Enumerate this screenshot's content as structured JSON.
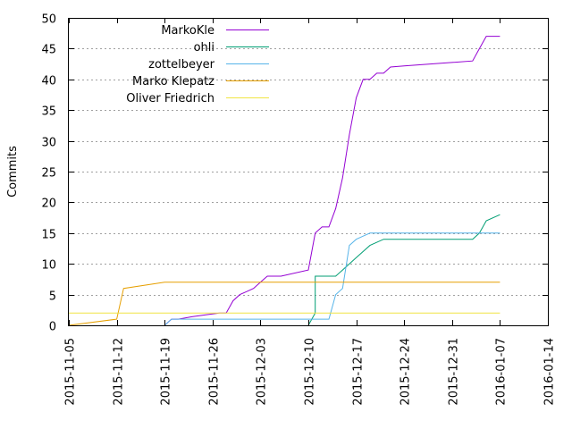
{
  "chart_data": {
    "type": "line",
    "title": "",
    "xlabel": "",
    "ylabel": "Commits",
    "xlim": [
      "2015-11-05",
      "2016-01-14"
    ],
    "ylim": [
      0,
      50
    ],
    "x_ticks": [
      "2015-11-05",
      "2015-11-12",
      "2015-11-19",
      "2015-11-26",
      "2015-12-03",
      "2015-12-10",
      "2015-12-17",
      "2015-12-24",
      "2015-12-31",
      "2016-01-07",
      "2016-01-14"
    ],
    "y_ticks": [
      0,
      5,
      10,
      15,
      20,
      25,
      30,
      35,
      40,
      45,
      50
    ],
    "grid": true,
    "legend_position": "top-left",
    "series": [
      {
        "name": "MarkoKle",
        "color": "#9400d3",
        "points": [
          [
            "2015-11-19",
            0
          ],
          [
            "2015-11-20",
            1
          ],
          [
            "2015-11-21",
            1
          ],
          [
            "2015-11-23",
            1.4
          ],
          [
            "2015-11-25",
            1.7
          ],
          [
            "2015-11-27",
            2
          ],
          [
            "2015-11-28",
            2
          ],
          [
            "2015-11-29",
            4
          ],
          [
            "2015-11-30",
            5
          ],
          [
            "2015-12-01",
            5.5
          ],
          [
            "2015-12-02",
            6
          ],
          [
            "2015-12-03",
            7
          ],
          [
            "2015-12-04",
            8
          ],
          [
            "2015-12-06",
            8
          ],
          [
            "2015-12-10",
            9
          ],
          [
            "2015-12-11",
            15
          ],
          [
            "2015-12-12",
            16
          ],
          [
            "2015-12-13",
            16
          ],
          [
            "2015-12-14",
            19
          ],
          [
            "2015-12-15",
            24
          ],
          [
            "2015-12-16",
            31
          ],
          [
            "2015-12-17",
            37
          ],
          [
            "2015-12-18",
            40
          ],
          [
            "2015-12-19",
            40
          ],
          [
            "2015-12-20",
            41
          ],
          [
            "2015-12-21",
            41
          ],
          [
            "2015-12-22",
            42
          ],
          [
            "2015-12-24",
            42.2
          ],
          [
            "2016-01-03",
            43
          ],
          [
            "2016-01-04",
            45
          ],
          [
            "2016-01-05",
            47
          ],
          [
            "2016-01-07",
            47
          ]
        ]
      },
      {
        "name": "ohli",
        "color": "#009e73",
        "points": [
          [
            "2015-12-10",
            0
          ],
          [
            "2015-12-11",
            2
          ],
          [
            "2015-12-11",
            8
          ],
          [
            "2015-12-13",
            8
          ],
          [
            "2015-12-14",
            8
          ],
          [
            "2015-12-15",
            9
          ],
          [
            "2015-12-16",
            10
          ],
          [
            "2015-12-17",
            11
          ],
          [
            "2015-12-18",
            12
          ],
          [
            "2015-12-19",
            13
          ],
          [
            "2015-12-21",
            14
          ],
          [
            "2016-01-03",
            14
          ],
          [
            "2016-01-04",
            15
          ],
          [
            "2016-01-05",
            17
          ],
          [
            "2016-01-07",
            18
          ]
        ]
      },
      {
        "name": "zottelbeyer",
        "color": "#56b4e9",
        "points": [
          [
            "2015-11-19",
            0
          ],
          [
            "2015-11-20",
            1
          ],
          [
            "2015-12-13",
            1
          ],
          [
            "2015-12-14",
            5
          ],
          [
            "2015-12-15",
            6
          ],
          [
            "2015-12-16",
            13
          ],
          [
            "2015-12-17",
            14
          ],
          [
            "2015-12-18",
            14.5
          ],
          [
            "2015-12-19",
            15
          ],
          [
            "2016-01-07",
            15
          ]
        ]
      },
      {
        "name": "Marko Klepatz",
        "color": "#e69f00",
        "points": [
          [
            "2015-11-05",
            0
          ],
          [
            "2015-11-12",
            1
          ],
          [
            "2015-11-13",
            6
          ],
          [
            "2015-11-19",
            7
          ],
          [
            "2016-01-07",
            7
          ]
        ]
      },
      {
        "name": "Oliver Friedrich",
        "color": "#f0e442",
        "points": [
          [
            "2015-11-05",
            2
          ],
          [
            "2016-01-07",
            2
          ]
        ]
      }
    ]
  }
}
